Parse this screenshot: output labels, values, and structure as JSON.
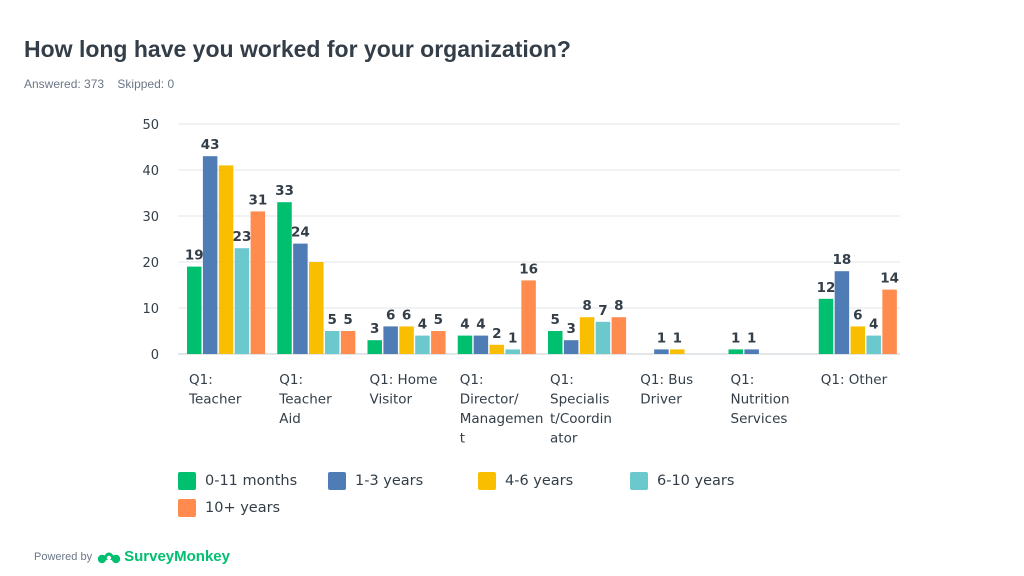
{
  "header": {
    "title": "How long have you worked for your organization?",
    "answered": "Answered: 373",
    "skipped": "Skipped: 0"
  },
  "footer": {
    "powered_by": "Powered by",
    "brand": "SurveyMonkey",
    "brand_icon": "surveymonkey-logo-icon"
  },
  "colors": {
    "series": [
      "#00bf6f",
      "#507cb6",
      "#f9be00",
      "#6bc8cd",
      "#ff8b4f"
    ],
    "grid": "#e3e6ea",
    "axis": "#c7cdd3"
  },
  "chart_data": {
    "type": "bar",
    "title": "How long have you worked for your organization?",
    "ylim": [
      0,
      50
    ],
    "yticks": [
      0,
      10,
      20,
      30,
      40,
      50
    ],
    "grid": true,
    "legend_position": "bottom",
    "categories": [
      [
        "Q1:",
        "Teacher"
      ],
      [
        "Q1:",
        "Teacher",
        "Aid"
      ],
      [
        "Q1: Home",
        "Visitor"
      ],
      [
        "Q1:",
        "Director/",
        "Managemen",
        "t"
      ],
      [
        "Q1:",
        "Specialis",
        "t/Coordin",
        "ator"
      ],
      [
        "Q1: Bus",
        "Driver"
      ],
      [
        "Q1:",
        "Nutrition",
        "Services"
      ],
      [
        "Q1: Other"
      ]
    ],
    "series": [
      {
        "name": "0-11 months",
        "values": [
          19,
          33,
          3,
          4,
          5,
          0,
          1,
          12
        ]
      },
      {
        "name": "1-3 years",
        "values": [
          43,
          24,
          6,
          4,
          3,
          1,
          1,
          18
        ]
      },
      {
        "name": "4-6 years",
        "values": [
          41,
          20,
          6,
          2,
          8,
          1,
          0,
          6
        ]
      },
      {
        "name": "6-10 years",
        "values": [
          23,
          5,
          4,
          1,
          7,
          0,
          0,
          4
        ]
      },
      {
        "name": "10+ years",
        "values": [
          31,
          5,
          5,
          16,
          8,
          0,
          0,
          14
        ]
      }
    ],
    "data_labels": [
      [
        "19",
        "43",
        "",
        "23",
        "31"
      ],
      [
        "33",
        "24",
        "",
        "5",
        "5"
      ],
      [
        "3",
        "6",
        "6",
        "4",
        "5"
      ],
      [
        "4",
        "4",
        "2",
        "1",
        "16"
      ],
      [
        "5",
        "3",
        "8",
        "7",
        "8"
      ],
      [
        "",
        "1",
        "1",
        "",
        ""
      ],
      [
        "1",
        "1",
        "",
        "",
        ""
      ],
      [
        "12",
        "18",
        "6",
        "4",
        "14"
      ]
    ]
  }
}
